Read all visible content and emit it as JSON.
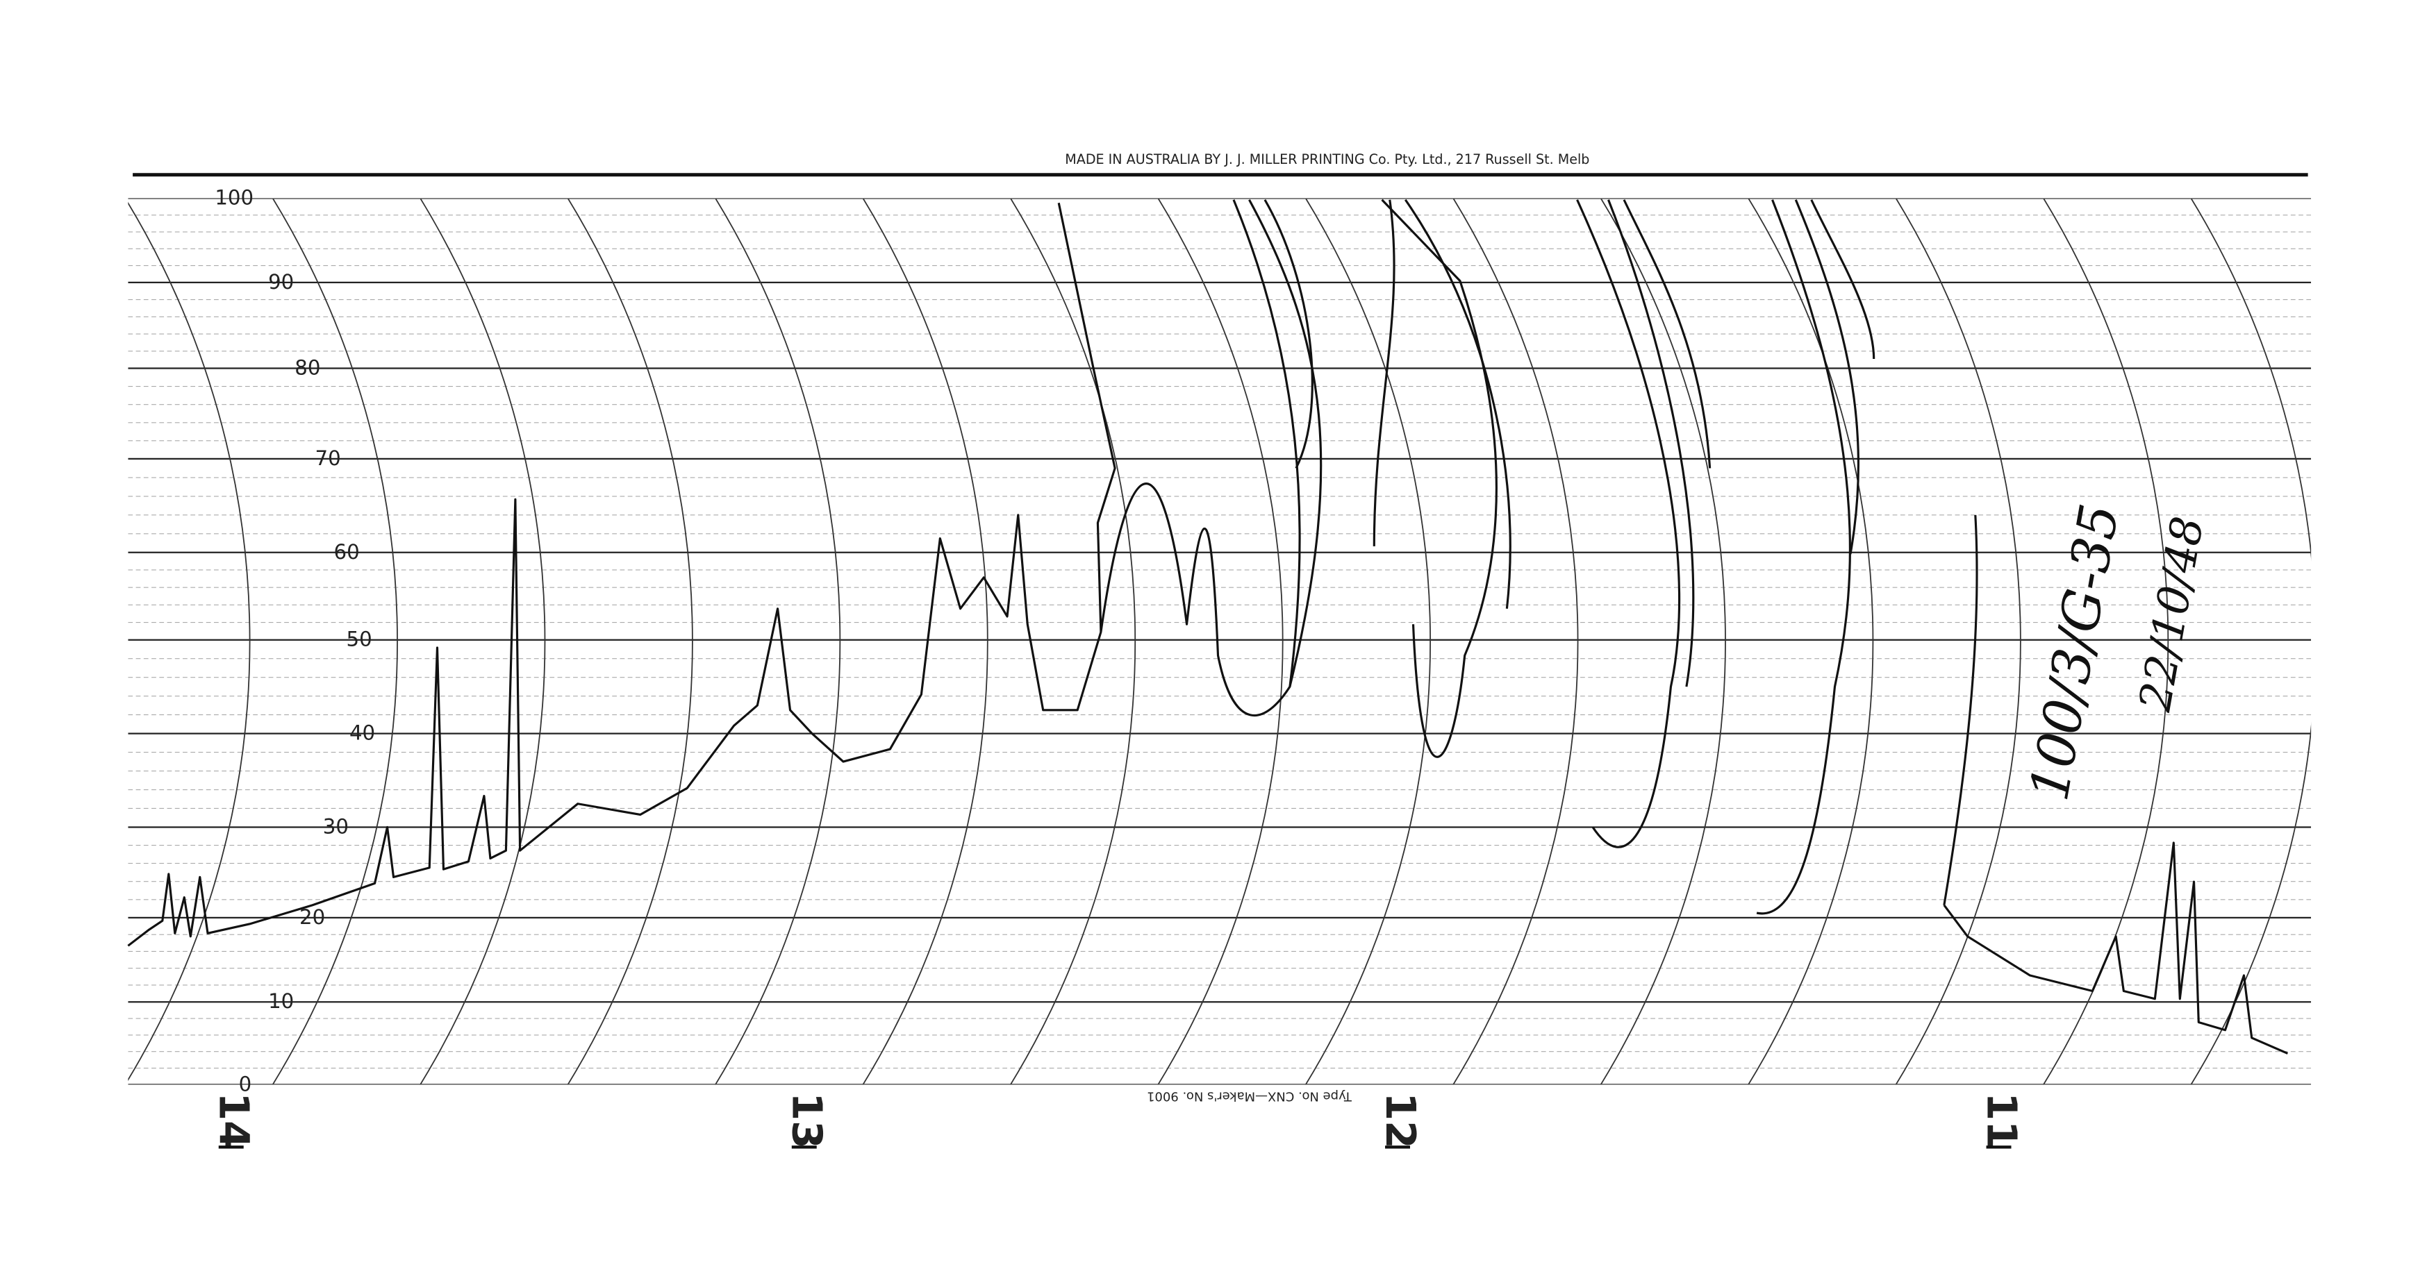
{
  "header": {
    "imprint": "MADE IN AUSTRALIA BY J. J. MILLER PRINTING Co. Pty. Ltd., 217 Russell St. Melb"
  },
  "scale": {
    "labels": [
      "100",
      "90",
      "80",
      "70",
      "60",
      "50",
      "40",
      "30",
      "20",
      "10",
      "0"
    ]
  },
  "hours": [
    "14",
    "13",
    "12",
    "11"
  ],
  "footer": {
    "imprint": "Type No. CNX—Maker's No. 9001"
  },
  "annotations": {
    "chart_ref": "100/3/G-35",
    "date": "22/10/48"
  }
}
